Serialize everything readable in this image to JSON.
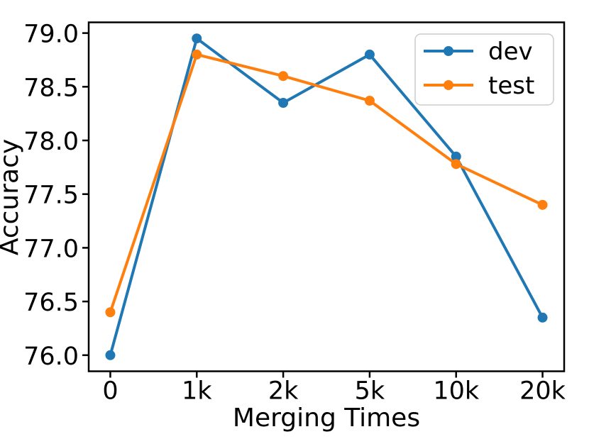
{
  "figure": {
    "background": "#ffffff"
  },
  "chart_data": {
    "type": "line",
    "title": "",
    "xlabel": "Merging Times",
    "ylabel": "Accuracy",
    "categories": [
      "0",
      "1k",
      "2k",
      "5k",
      "10k",
      "20k"
    ],
    "series": [
      {
        "name": "dev",
        "color": "#1f77b4",
        "values": [
          76.0,
          78.95,
          78.35,
          78.8,
          77.85,
          76.35
        ]
      },
      {
        "name": "test",
        "color": "#ff7f0e",
        "values": [
          76.4,
          78.8,
          78.6,
          78.37,
          77.78,
          77.4
        ]
      }
    ],
    "yticks": [
      76.0,
      76.5,
      77.0,
      77.5,
      78.0,
      78.5,
      79.0
    ],
    "ytick_labels": [
      "76.0",
      "76.5",
      "77.0",
      "77.5",
      "78.0",
      "78.5",
      "79.0"
    ],
    "ylim": [
      75.85,
      79.1
    ],
    "xlim": [
      -0.25,
      5.25
    ],
    "grid": false,
    "marker": "circle",
    "line_style": "solid",
    "axis_color": "#000000",
    "legend": {
      "position": "upper right",
      "entries": [
        "dev",
        "test"
      ],
      "border_color": "#cccccc",
      "background": "#ffffff"
    }
  }
}
